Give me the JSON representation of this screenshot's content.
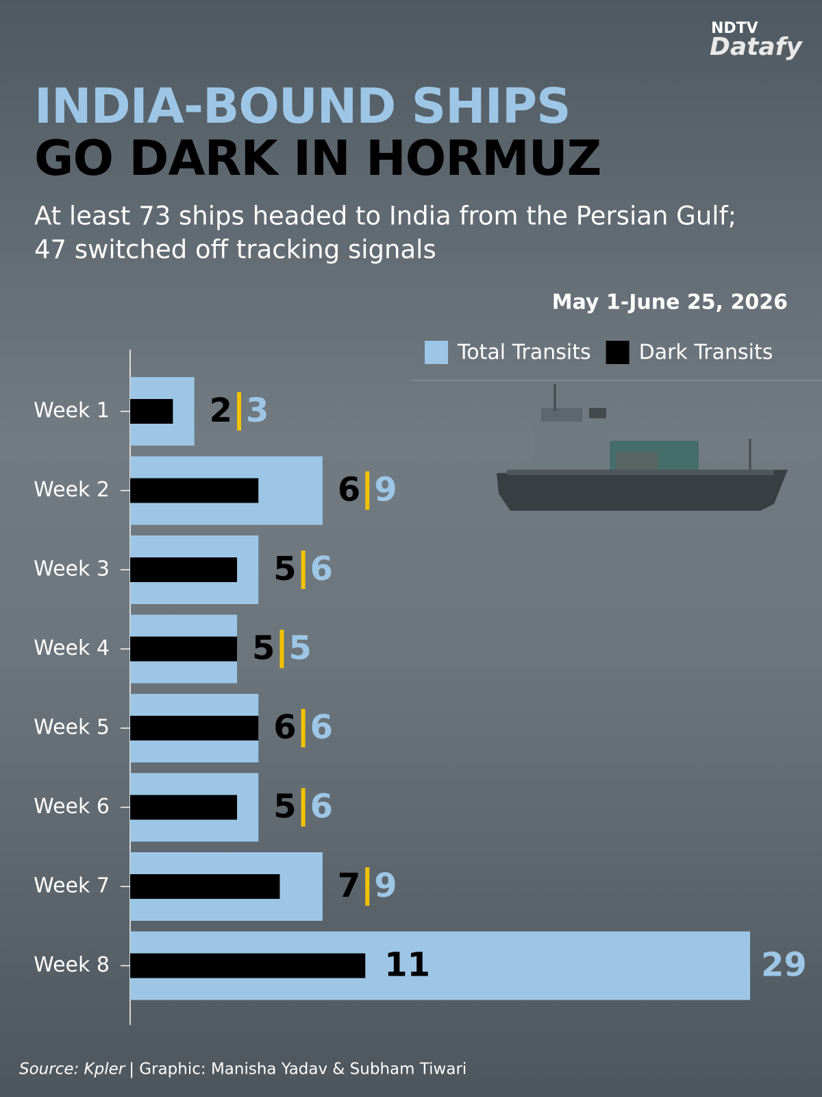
{
  "logo": {
    "brand": "NDTV",
    "product": "Datafy"
  },
  "chart_data": {
    "type": "bar",
    "orientation": "horizontal",
    "title": [
      "INDIA-BOUND SHIPS",
      "GO DARK IN HORMUZ"
    ],
    "subtitle": [
      "At least 73 ships headed to India from the Persian Gulf;",
      "47 switched off tracking signals"
    ],
    "period": "May 1-June 25, 2026",
    "categories": [
      "Week 1",
      "Week 2",
      "Week 3",
      "Week 4",
      "Week 5",
      "Week 6",
      "Week 7",
      "Week 8"
    ],
    "series": [
      {
        "name": "Total Transits",
        "color": "#9dc6e6",
        "values": [
          3,
          9,
          6,
          5,
          6,
          6,
          9,
          29
        ]
      },
      {
        "name": "Dark Transits",
        "color": "#000000",
        "values": [
          2,
          6,
          5,
          5,
          6,
          5,
          7,
          11
        ]
      }
    ],
    "separator_color": "#f2c200",
    "source": "Source: Kpler",
    "credit": "| Graphic: Manisha Yadav & Subham Tiwari"
  }
}
